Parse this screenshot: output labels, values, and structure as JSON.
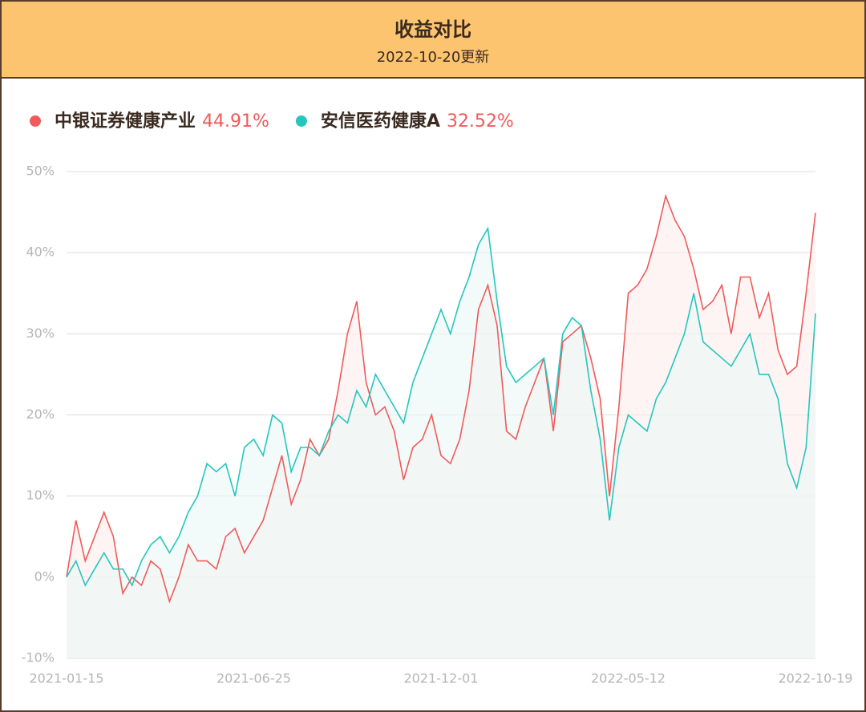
{
  "chart_data": {
    "type": "line",
    "title": "收益对比",
    "subtitle": "2022-10-20更新",
    "categories": [
      "2021-01-15",
      null,
      null,
      null,
      null,
      null,
      null,
      null,
      null,
      null,
      null,
      null,
      null,
      null,
      null,
      null,
      null,
      null,
      null,
      null,
      "2021-06-25",
      null,
      null,
      null,
      null,
      null,
      null,
      null,
      null,
      null,
      null,
      null,
      null,
      null,
      null,
      null,
      null,
      null,
      null,
      null,
      "2021-12-01",
      null,
      null,
      null,
      null,
      null,
      null,
      null,
      null,
      null,
      null,
      null,
      null,
      null,
      null,
      null,
      null,
      null,
      null,
      null,
      "2022-05-12",
      null,
      null,
      null,
      null,
      null,
      null,
      null,
      null,
      null,
      null,
      null,
      null,
      null,
      null,
      null,
      null,
      null,
      null,
      null,
      "2022-10-19"
    ],
    "series": [
      {
        "name": "中银证券健康产业",
        "color": "#f05a5a",
        "fill": "#fdecec",
        "legend_value": "44.91%",
        "values": [
          0,
          7,
          2,
          5,
          8,
          5,
          -2,
          0,
          -1,
          2,
          1,
          -3,
          0,
          4,
          2,
          2,
          1,
          5,
          6,
          3,
          5,
          7,
          11,
          15,
          9,
          12,
          17,
          15,
          17,
          23,
          30,
          34,
          24,
          20,
          21,
          18,
          12,
          16,
          17,
          20,
          15,
          14,
          17,
          23,
          33,
          36,
          31,
          18,
          17,
          21,
          24,
          27,
          18,
          29,
          30,
          31,
          27,
          22,
          10,
          21,
          35,
          36,
          38,
          42,
          47,
          44,
          42,
          38,
          33,
          34,
          36,
          30,
          37,
          37,
          32,
          35,
          28,
          25,
          26,
          35,
          44.91
        ]
      },
      {
        "name": "安信医药健康A",
        "color": "#26c6bd",
        "fill": "#eaf8f7",
        "legend_value": "32.52%",
        "values": [
          0,
          2,
          -1,
          1,
          3,
          1,
          1,
          -1,
          2,
          4,
          5,
          3,
          5,
          8,
          10,
          14,
          13,
          14,
          10,
          16,
          17,
          15,
          20,
          19,
          13,
          16,
          16,
          15,
          18,
          20,
          19,
          23,
          21,
          25,
          23,
          21,
          19,
          24,
          27,
          30,
          33,
          30,
          34,
          37,
          41,
          43,
          34,
          26,
          24,
          25,
          26,
          27,
          20,
          30,
          32,
          31,
          23,
          17,
          7,
          16,
          20,
          19,
          18,
          22,
          24,
          27,
          30,
          35,
          29,
          28,
          27,
          26,
          28,
          30,
          25,
          25,
          22,
          14,
          11,
          16,
          32.52
        ]
      }
    ],
    "ylim": [
      -10,
      50
    ],
    "yticks": [
      {
        "value": -10,
        "label": "-10%"
      },
      {
        "value": 0,
        "label": "0%"
      },
      {
        "value": 10,
        "label": "10%"
      },
      {
        "value": 20,
        "label": "20%"
      },
      {
        "value": 30,
        "label": "30%"
      },
      {
        "value": 40,
        "label": "40%"
      },
      {
        "value": 50,
        "label": "50%"
      }
    ],
    "grid": true
  }
}
